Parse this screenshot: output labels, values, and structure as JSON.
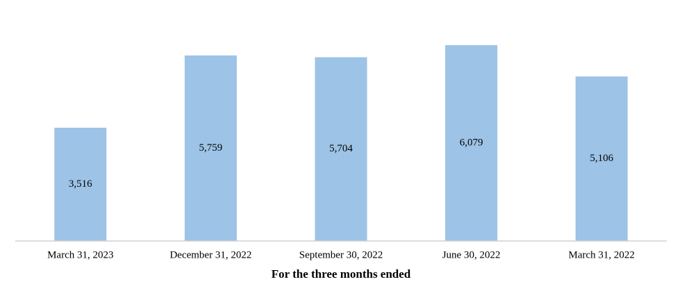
{
  "chart_data": {
    "type": "bar",
    "x_label": "For the three months ended",
    "categories": [
      "March 31, 2023",
      "December 31, 2022",
      "September 30, 2022",
      "June 30, 2022",
      "March 31, 2022"
    ],
    "values": [
      3516,
      5759,
      5704,
      6079,
      5106
    ],
    "value_labels": [
      "3,516",
      "5,759",
      "5,704",
      "6,079",
      "5,106"
    ],
    "color": "#9dc3e6"
  }
}
